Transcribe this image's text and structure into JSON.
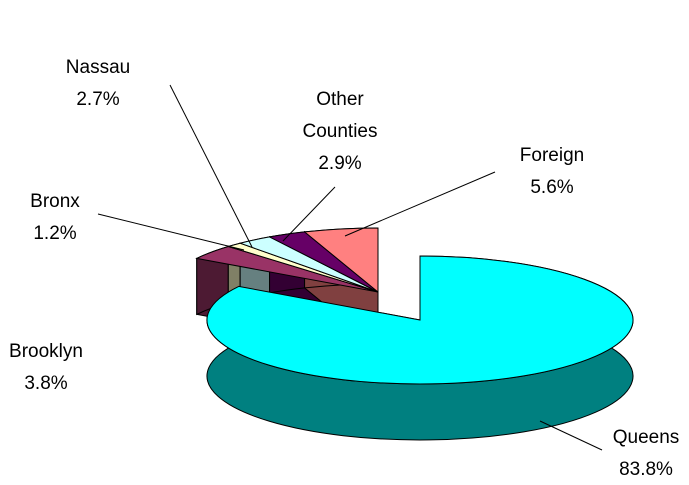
{
  "chart_data": {
    "type": "pie",
    "categories": [
      "Queens",
      "Brooklyn",
      "Bronx",
      "Nassau",
      "Other Counties",
      "Foreign"
    ],
    "values": [
      83.8,
      3.8,
      1.2,
      2.7,
      2.9,
      5.6
    ],
    "value_labels": [
      "83.8%",
      "3.8%",
      "1.2%",
      "2.7%",
      "2.9%",
      "5.6%"
    ],
    "colors": [
      "#00ffff",
      "#993366",
      "#ffffcc",
      "#ccffff",
      "#660066",
      "#ff8080"
    ]
  }
}
